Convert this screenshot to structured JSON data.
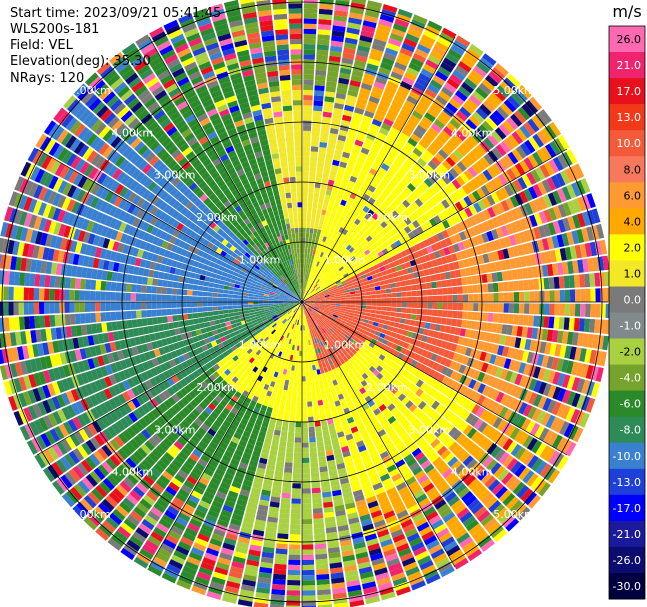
{
  "info": {
    "start_time": "Start time: 2023/09/21 05:41:45",
    "instrument": "WLS200s-181",
    "field": "Field: VEL",
    "elevation": "Elevation(deg): 35.30",
    "nrays": "NRays: 120"
  },
  "chart_data": {
    "type": "polar-ppi",
    "range_unit": "km",
    "range_ring_labels": [
      "1.00km",
      "2.00km",
      "3.00km",
      "4.00km",
      "5.00km"
    ],
    "range_rings": [
      1,
      2,
      3,
      4,
      5
    ],
    "max_range": 5.1,
    "num_rays": 120,
    "colorbar": {
      "unit": "m/s",
      "ticks": [
        "26.0",
        "21.0",
        "17.0",
        "13.0",
        "10.0",
        "8.0",
        "6.0",
        "4.0",
        "2.0",
        "1.0",
        "0.0",
        "-1.0",
        "-2.0",
        "-4.0",
        "-6.0",
        "-8.0",
        "-10.0",
        "-13.0",
        "-17.0",
        "-21.0",
        "-26.0",
        "-30.0"
      ],
      "colors": [
        "#ff69b4",
        "#f0246e",
        "#e8101c",
        "#f23a1a",
        "#f25a3a",
        "#f7785a",
        "#ff9a32",
        "#ffa800",
        "#ffff00",
        "#f2e828",
        "#7a7a7a",
        "#808a8a",
        "#a8d040",
        "#76a32c",
        "#2a8a2a",
        "#2e8b57",
        "#3a80d0",
        "#1e3fd8",
        "#0000ff",
        "#1a1a9a",
        "#0b0b70",
        "#000040"
      ]
    }
  }
}
